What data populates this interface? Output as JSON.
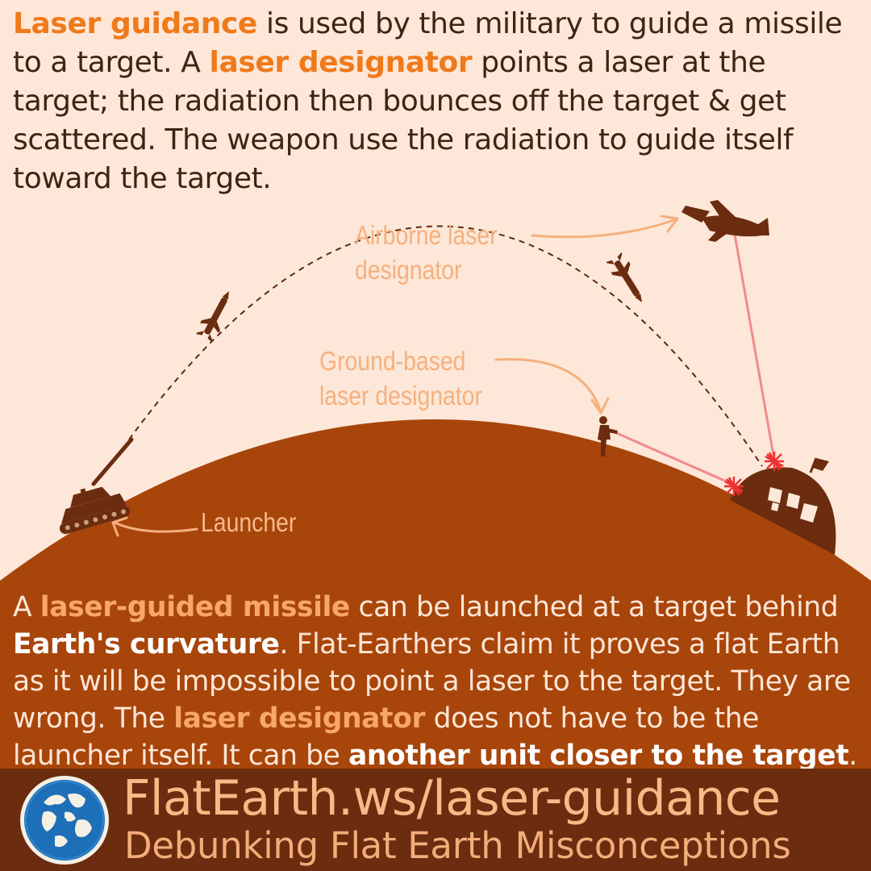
{
  "intro": {
    "t1": "Laser guidance",
    "t2": " is used by the military to guide a missile to a target. A ",
    "t3": "laser designator",
    "t4": " points a laser at the target; the radiation then bounces off the target & get scattered. The weapon use the radiation to guide itself toward the target."
  },
  "diagram": {
    "airborne_label_1": "Airborne laser",
    "airborne_label_2": "designator",
    "ground_label_1": "Ground-based",
    "ground_label_2": "laser designator",
    "launcher_label": "Launcher"
  },
  "body": {
    "t1": "A ",
    "t2": "laser-guided missile",
    "t3": " can be launched at a target behind ",
    "t4": "Earth's curvature",
    "t5": ". Flat-Earthers claim it proves a flat Earth as it will be impossible to point a laser to the target. They are wrong. The ",
    "t6": "laser designator",
    "t7": " does not have to be the launcher itself. It can be ",
    "t8": "another unit closer to the target",
    "t9": "."
  },
  "footer": {
    "url": "FlatEarth.ws/laser-guidance",
    "tagline": "Debunking Flat Earth Misconceptions"
  },
  "colors": {
    "background": "#fde7d8",
    "earth": "#a8450b",
    "footer": "#6b2c10",
    "accent_orange": "#f07a1a",
    "dark_brown": "#6b2c10",
    "laser": "#f28a8a",
    "label_orange": "#f5b07e"
  }
}
